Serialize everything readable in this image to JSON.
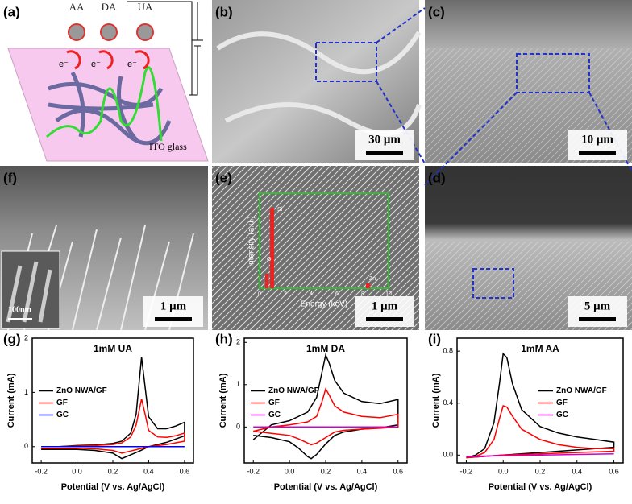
{
  "panels": {
    "a": {
      "label": "(a)",
      "molecules": [
        "AA",
        "DA",
        "UA"
      ],
      "electron": "e⁻",
      "substrate": "ITO glass"
    },
    "b": {
      "label": "(b)",
      "scale_bar": "30 μm"
    },
    "c": {
      "label": "(c)",
      "scale_bar": "10 μm"
    },
    "f": {
      "label": "(f)",
      "scale_bar": "1 μm",
      "inset_scale_bar": "100nm"
    },
    "e": {
      "label": "(e)",
      "scale_bar": "1 μm",
      "eds_inset": {
        "xlabel": "Energy (keV)",
        "ylabel": "Intensity (a.u.)",
        "xticks": [
          0,
          2,
          4,
          6,
          8,
          10
        ],
        "peaks": [
          "Si",
          "O",
          "Zn"
        ]
      }
    },
    "d": {
      "label": "(d)",
      "scale_bar": "5 μm"
    }
  },
  "chart_data": [
    {
      "type": "line",
      "panel": "(g)",
      "title": "1mM UA",
      "xlabel": "Potential (V vs. Ag/AgCl)",
      "ylabel": "Current (mA)",
      "xlim": [
        -0.25,
        0.65
      ],
      "ylim": [
        -0.3,
        2
      ],
      "xticks": [
        -0.2,
        {
          "value": 0,
          "label": "0.0"
        },
        0.2,
        0.4,
        0.6
      ],
      "yticks": [
        0,
        1,
        2
      ],
      "legend": "center-left",
      "series": [
        {
          "name": "ZnO NWA/GF",
          "color": "#000000",
          "x": [
            -0.2,
            -0.1,
            0,
            0.1,
            0.2,
            0.25,
            0.3,
            0.33,
            0.36,
            0.38,
            0.4,
            0.45,
            0.5,
            0.55,
            0.6,
            0.6,
            0.5,
            0.4,
            0.35,
            0.3,
            0.25,
            0.2,
            0.1,
            0,
            -0.2
          ],
          "values": [
            0,
            0,
            0.02,
            0.03,
            0.06,
            0.1,
            0.25,
            0.6,
            1.65,
            1.1,
            0.55,
            0.33,
            0.33,
            0.38,
            0.45,
            0.2,
            0.08,
            0,
            -0.08,
            -0.15,
            -0.22,
            -0.12,
            -0.07,
            -0.05,
            -0.05
          ]
        },
        {
          "name": "GF",
          "color": "#ff0000",
          "x": [
            -0.2,
            -0.1,
            0,
            0.1,
            0.2,
            0.25,
            0.3,
            0.33,
            0.36,
            0.38,
            0.4,
            0.45,
            0.5,
            0.55,
            0.6,
            0.6,
            0.5,
            0.4,
            0.35,
            0.3,
            0.25,
            0.2,
            0.1,
            0,
            -0.2
          ],
          "values": [
            0,
            0,
            0.01,
            0.02,
            0.04,
            0.07,
            0.18,
            0.4,
            0.88,
            0.6,
            0.3,
            0.18,
            0.17,
            0.2,
            0.25,
            0.1,
            0.04,
            0,
            -0.04,
            -0.08,
            -0.12,
            -0.07,
            -0.04,
            -0.03,
            -0.03
          ]
        },
        {
          "name": "GC",
          "color": "#0000ff",
          "x": [
            -0.2,
            0.6
          ],
          "values": [
            0,
            0
          ]
        }
      ]
    },
    {
      "type": "line",
      "panel": "(h)",
      "title": "1mM DA",
      "xlabel": "Potential (V vs. Ag/AgCl)",
      "ylabel": "Current (mA)",
      "xlim": [
        -0.25,
        0.65
      ],
      "ylim": [
        -0.85,
        2.1
      ],
      "xticks": [
        -0.2,
        {
          "value": 0,
          "label": "0.0"
        },
        0.2,
        0.4,
        0.6
      ],
      "yticks": [
        0,
        1,
        2
      ],
      "legend": "center-left",
      "series": [
        {
          "name": "ZnO NWA/GF",
          "color": "#000000",
          "x": [
            -0.2,
            -0.1,
            0,
            0.1,
            0.15,
            0.18,
            0.2,
            0.22,
            0.25,
            0.3,
            0.4,
            0.5,
            0.6,
            0.6,
            0.5,
            0.4,
            0.3,
            0.25,
            0.2,
            0.15,
            0.12,
            0.1,
            0.05,
            0,
            -0.1,
            -0.2
          ],
          "values": [
            -0.3,
            0.05,
            0.15,
            0.35,
            0.7,
            1.3,
            1.7,
            1.5,
            1.1,
            0.8,
            0.6,
            0.55,
            0.65,
            0.05,
            -0.02,
            -0.05,
            -0.12,
            -0.2,
            -0.4,
            -0.65,
            -0.75,
            -0.7,
            -0.5,
            -0.35,
            -0.25,
            -0.2
          ]
        },
        {
          "name": "GF",
          "color": "#ff0000",
          "x": [
            -0.2,
            -0.1,
            0,
            0.1,
            0.15,
            0.18,
            0.2,
            0.22,
            0.25,
            0.3,
            0.4,
            0.5,
            0.6,
            0.6,
            0.5,
            0.4,
            0.3,
            0.25,
            0.2,
            0.15,
            0.12,
            0.1,
            0.05,
            0,
            -0.1,
            -0.2
          ],
          "values": [
            -0.1,
            0,
            0.05,
            0.12,
            0.25,
            0.6,
            0.9,
            0.75,
            0.5,
            0.35,
            0.25,
            0.22,
            0.3,
            0,
            -0.03,
            -0.05,
            -0.08,
            -0.12,
            -0.25,
            -0.38,
            -0.42,
            -0.38,
            -0.28,
            -0.2,
            -0.15,
            -0.1
          ]
        },
        {
          "name": "GC",
          "color": "#cc00cc",
          "x": [
            -0.2,
            0.6
          ],
          "values": [
            0,
            0
          ]
        }
      ]
    },
    {
      "type": "line",
      "panel": "(i)",
      "title": "1mM AA",
      "xlabel": "Potential (V vs. Ag/AgCl)",
      "ylabel": "Current (mA)",
      "xlim": [
        -0.25,
        0.65
      ],
      "ylim": [
        -0.06,
        0.9
      ],
      "xticks": [
        -0.2,
        {
          "value": 0,
          "label": "0.0"
        },
        0.2,
        0.4,
        0.6
      ],
      "yticks": [
        {
          "value": 0,
          "label": "0.0"
        },
        0.4,
        0.8
      ],
      "legend": "center-right",
      "series": [
        {
          "name": "ZnO NWA/GF",
          "color": "#000000",
          "x": [
            -0.2,
            -0.15,
            -0.1,
            -0.05,
            -0.02,
            0,
            0.02,
            0.05,
            0.1,
            0.2,
            0.3,
            0.4,
            0.5,
            0.6,
            0.6,
            0.4,
            0.2,
            0,
            -0.2
          ],
          "values": [
            -0.02,
            0,
            0.05,
            0.25,
            0.55,
            0.78,
            0.75,
            0.55,
            0.35,
            0.22,
            0.17,
            0.14,
            0.12,
            0.1,
            0.06,
            0.04,
            0.02,
            0,
            -0.02
          ]
        },
        {
          "name": "GF",
          "color": "#ff0000",
          "x": [
            -0.2,
            -0.15,
            -0.1,
            -0.05,
            -0.02,
            0,
            0.02,
            0.05,
            0.1,
            0.2,
            0.3,
            0.4,
            0.5,
            0.6,
            0.6,
            0.4,
            0.2,
            0,
            -0.2
          ],
          "values": [
            -0.02,
            -0.01,
            0.02,
            0.12,
            0.28,
            0.38,
            0.37,
            0.3,
            0.2,
            0.12,
            0.08,
            0.06,
            0.05,
            0.05,
            0.03,
            0.02,
            0.01,
            0,
            -0.02
          ]
        },
        {
          "name": "GC",
          "color": "#cc00cc",
          "x": [
            -0.2,
            0.6
          ],
          "values": [
            -0.01,
            0.01
          ]
        }
      ]
    }
  ]
}
